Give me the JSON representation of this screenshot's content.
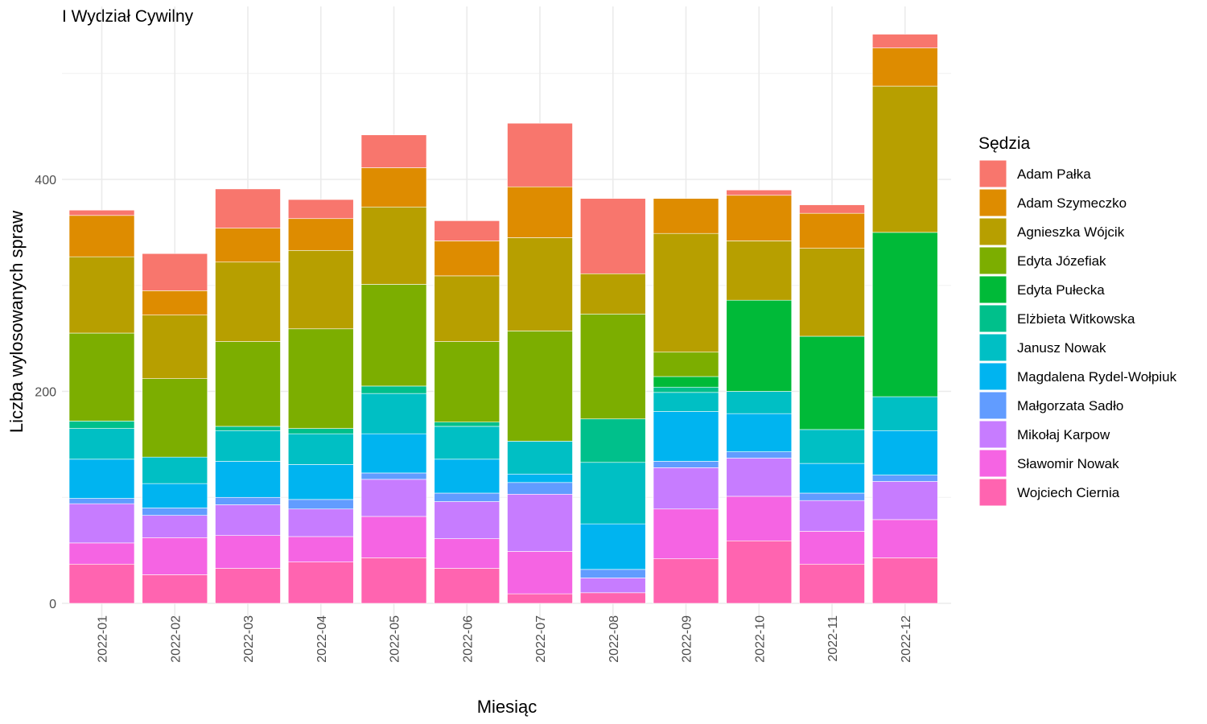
{
  "chart_data": {
    "type": "bar",
    "stacked": true,
    "title": "I Wydział Cywilny",
    "xlabel": "Miesiąc",
    "ylabel": "Liczba wylosowanych spraw",
    "ylim": [
      -20,
      540
    ],
    "yticks": [
      0,
      200,
      400
    ],
    "grid": true,
    "legend_position": "right",
    "legend_title": "Sędzia",
    "categories": [
      "2022-01",
      "2022-02",
      "2022-03",
      "2022-04",
      "2022-05",
      "2022-06",
      "2022-07",
      "2022-08",
      "2022-09",
      "2022-10",
      "2022-11",
      "2022-12"
    ],
    "series": [
      {
        "name": "Adam Pałka",
        "color": "#F8766D",
        "values": [
          5,
          35,
          37,
          18,
          31,
          19,
          60,
          71,
          0,
          5,
          8,
          13
        ]
      },
      {
        "name": "Adam Szymeczko",
        "color": "#DE8C00",
        "values": [
          39,
          23,
          32,
          30,
          37,
          33,
          48,
          0,
          33,
          43,
          33,
          36
        ]
      },
      {
        "name": "Agnieszka Wójcik",
        "color": "#B79F00",
        "values": [
          72,
          60,
          75,
          74,
          73,
          62,
          88,
          38,
          112,
          56,
          83,
          138
        ]
      },
      {
        "name": "Edyta Józefiak",
        "color": "#7CAE00",
        "values": [
          83,
          74,
          80,
          94,
          96,
          76,
          104,
          99,
          23,
          0,
          0,
          0
        ]
      },
      {
        "name": "Edyta Pułecka",
        "color": "#00BA38",
        "values": [
          0,
          0,
          0,
          0,
          0,
          0,
          0,
          0,
          10,
          86,
          88,
          155
        ]
      },
      {
        "name": "Elżbieta Witkowska",
        "color": "#00C08B",
        "values": [
          7,
          0,
          4,
          5,
          7,
          4,
          0,
          41,
          5,
          0,
          0,
          0
        ]
      },
      {
        "name": "Janusz Nowak",
        "color": "#00BFC4",
        "values": [
          29,
          25,
          29,
          29,
          38,
          31,
          31,
          58,
          18,
          21,
          32,
          32
        ]
      },
      {
        "name": "Magdalena Rydel-Wołpiuk",
        "color": "#00B4F0",
        "values": [
          37,
          23,
          34,
          33,
          37,
          32,
          8,
          43,
          47,
          36,
          28,
          42
        ]
      },
      {
        "name": "Małgorzata Sadło",
        "color": "#619CFF",
        "values": [
          5,
          7,
          7,
          9,
          6,
          8,
          11,
          8,
          6,
          6,
          7,
          6
        ]
      },
      {
        "name": "Mikołaj Karpow",
        "color": "#C77CFF",
        "values": [
          37,
          21,
          29,
          26,
          35,
          35,
          54,
          14,
          39,
          36,
          29,
          36
        ]
      },
      {
        "name": "Sławomir Nowak",
        "color": "#F564E3",
        "values": [
          20,
          35,
          31,
          24,
          39,
          28,
          40,
          0,
          47,
          42,
          31,
          36
        ]
      },
      {
        "name": "Wojciech Ciernia",
        "color": "#FF64B0",
        "values": [
          37,
          27,
          33,
          39,
          43,
          33,
          9,
          10,
          42,
          59,
          37,
          43
        ]
      }
    ]
  }
}
